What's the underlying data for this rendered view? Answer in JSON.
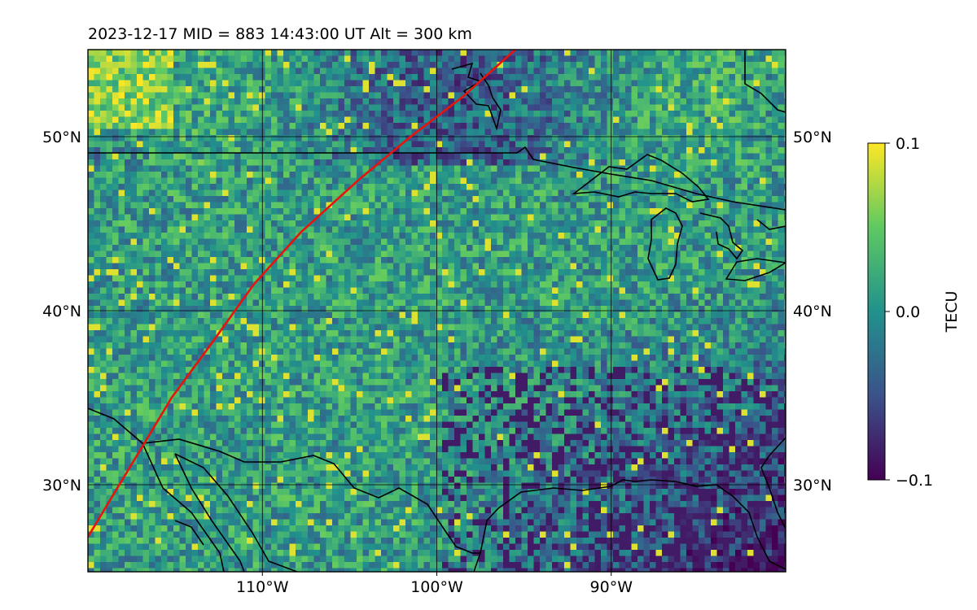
{
  "title": "2023-12-17  MID = 883    14:43:00  UT  Alt = 300 km",
  "map": {
    "lon_range": [
      -120,
      -80
    ],
    "lat_range": [
      25,
      55
    ],
    "gridlines": true,
    "x_ticks": [
      {
        "value": -110,
        "label": "110°W"
      },
      {
        "value": -100,
        "label": "100°W"
      },
      {
        "value": -90,
        "label": "90°W"
      }
    ],
    "y_ticks": [
      {
        "value": 30,
        "label": "30°N"
      },
      {
        "value": 40,
        "label": "40°N"
      },
      {
        "value": 50,
        "label": "50°N"
      }
    ],
    "track_color": "#e8140c",
    "track_points": [
      [
        -120.0,
        27.0
      ],
      [
        -118.5,
        29.5
      ],
      [
        -117.0,
        32.0
      ],
      [
        -115.2,
        35.0
      ],
      [
        -113.0,
        38.0
      ],
      [
        -110.5,
        41.5
      ],
      [
        -107.8,
        44.5
      ],
      [
        -104.5,
        47.5
      ],
      [
        -101.5,
        50.0
      ],
      [
        -98.5,
        52.3
      ],
      [
        -95.5,
        55.0
      ]
    ]
  },
  "colorbar": {
    "label": "TECU",
    "min": -0.1,
    "max": 0.1,
    "ticks": [
      {
        "value": 0.1,
        "label": "0.1"
      },
      {
        "value": 0.0,
        "label": "0.0"
      },
      {
        "value": -0.1,
        "label": "−0.1"
      }
    ],
    "colormap": [
      "#440154",
      "#3b528b",
      "#21918c",
      "#5ec962",
      "#fde725"
    ]
  }
}
